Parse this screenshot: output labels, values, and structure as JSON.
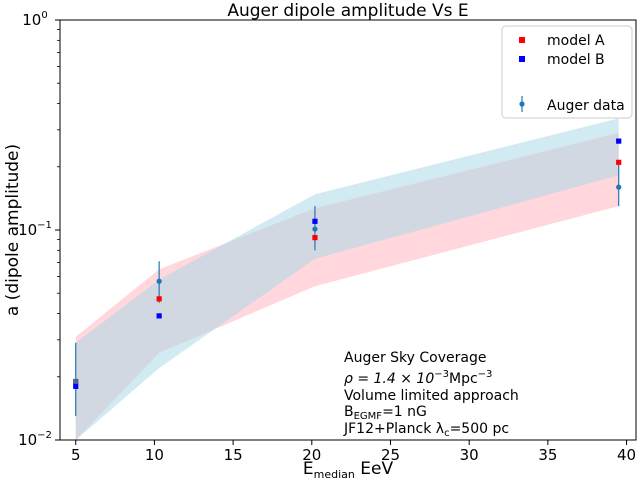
{
  "chart_data": {
    "type": "scatter",
    "title": "Auger dipole amplitude Vs E",
    "xlabel": {
      "main": "E",
      "sub": "median",
      "rest": " EeV"
    },
    "ylabel": "a (dipole amplitude)",
    "xlim": [
      4.0,
      40.6
    ],
    "ylim": [
      0.01,
      1.0
    ],
    "yscale": "log",
    "xticks": [
      5,
      10,
      15,
      20,
      25,
      30,
      35,
      40
    ],
    "yticks": [
      {
        "value": 0.01,
        "base": "10",
        "exp": "−2"
      },
      {
        "value": 0.1,
        "base": "10",
        "exp": "−1"
      },
      {
        "value": 1.0,
        "base": "10",
        "exp": "0"
      }
    ],
    "grid": false,
    "legend_position": "top-right",
    "series": [
      {
        "name": "model A",
        "color": "#ff0000",
        "marker": "square",
        "x": [
          5.0,
          10.3,
          20.2,
          39.5
        ],
        "y": [
          0.019,
          0.047,
          0.092,
          0.21
        ]
      },
      {
        "name": "model B",
        "color": "#0000ff",
        "marker": "square",
        "x": [
          5.0,
          10.3,
          20.2,
          39.5
        ],
        "y": [
          0.018,
          0.039,
          0.11,
          0.265
        ]
      },
      {
        "name": "Auger data",
        "color": "#1f77b4",
        "marker": "circle",
        "x": [
          5.0,
          10.3,
          20.2,
          39.5
        ],
        "y": [
          0.019,
          0.057,
          0.101,
          0.16
        ],
        "yerr_low": [
          0.013,
          0.045,
          0.08,
          0.13
        ],
        "yerr_high": [
          0.029,
          0.071,
          0.13,
          0.21
        ]
      }
    ],
    "bands": [
      {
        "color": "#ffb6c1",
        "opacity": 0.55,
        "x": [
          5.0,
          10.3,
          20.2,
          39.5
        ],
        "lower": [
          0.009,
          0.026,
          0.054,
          0.13
        ],
        "upper": [
          0.031,
          0.065,
          0.127,
          0.29
        ]
      },
      {
        "color": "#add8e6",
        "opacity": 0.55,
        "x": [
          5.0,
          10.3,
          20.2,
          39.5
        ],
        "lower": [
          0.008,
          0.022,
          0.073,
          0.182
        ],
        "upper": [
          0.029,
          0.058,
          0.148,
          0.34
        ]
      }
    ],
    "annotations": [
      {
        "text": "Auger Sky Coverage"
      },
      {
        "text": "ρ = 1.4 × 10",
        "sup": "−3",
        "after": "Mpc",
        "sup2": "−3",
        "italic_first": true
      },
      {
        "text": "Volume limited approach"
      },
      {
        "text": "B",
        "sub": "EGMF",
        "after": "=1 nG"
      },
      {
        "text": "JF12+Planck λ",
        "sub": "c",
        "after": "=500 pc"
      }
    ]
  }
}
